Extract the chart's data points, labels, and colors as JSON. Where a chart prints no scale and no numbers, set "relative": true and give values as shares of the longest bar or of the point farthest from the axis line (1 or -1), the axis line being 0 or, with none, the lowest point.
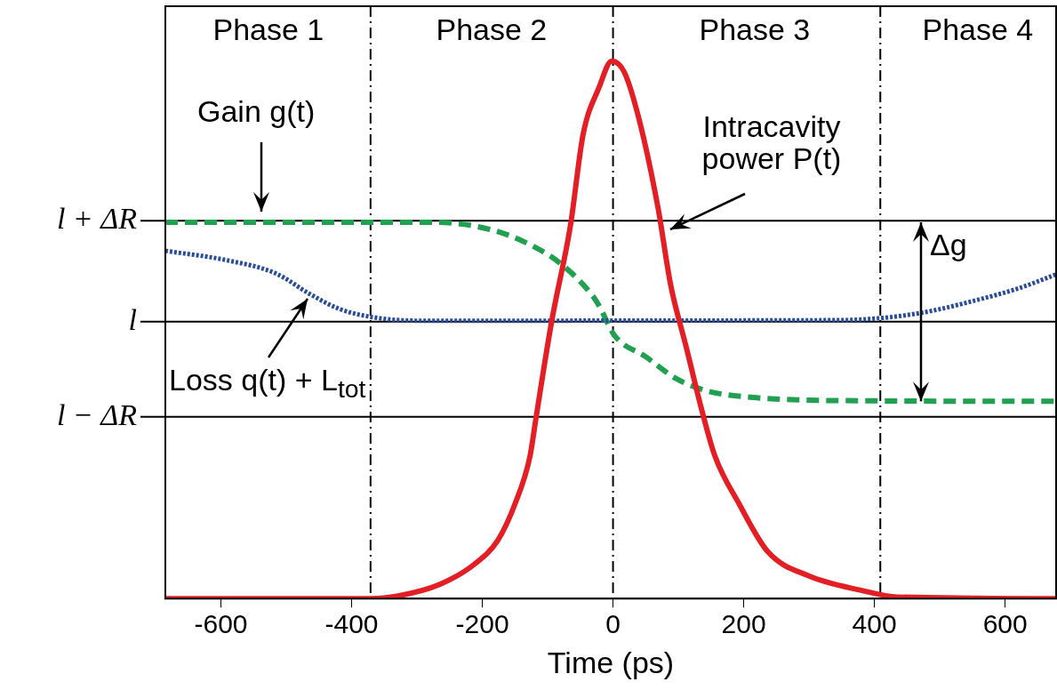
{
  "chart_data": {
    "type": "line",
    "relative": true,
    "xlabel": "Time (ps)",
    "xlim": [
      -685,
      678
    ],
    "xticks": [
      -600,
      -400,
      -200,
      0,
      200,
      400,
      600
    ],
    "grid": false,
    "series": [
      {
        "color": "#20a050",
        "line_style": "dashed",
        "x": [
          -685,
          -274,
          -186,
          -128,
          -80,
          -31,
          -21,
          2,
          50,
          97,
          145,
          216,
          378,
          678
        ],
        "values": [
          0.7,
          0.7,
          0.686,
          0.659,
          0.623,
          0.563,
          0.544,
          0.49,
          0.45,
          0.409,
          0.386,
          0.374,
          0.368,
          0.367
        ]
      },
      {
        "color": "#2a4d9a",
        "line_style": "dotted",
        "x": [
          -685,
          -589,
          -516,
          -463,
          -419,
          -370,
          -299,
          345,
          411,
          478,
          549,
          620,
          678
        ],
        "values": [
          0.647,
          0.629,
          0.605,
          0.566,
          0.539,
          0.524,
          0.517,
          0.518,
          0.522,
          0.533,
          0.553,
          0.577,
          0.603
        ]
      },
      {
        "color": "#e31e24",
        "line_style": "solid",
        "x": [
          -685,
          -371,
          -329,
          -266,
          -212,
          -176,
          -150,
          -127,
          -118,
          -94,
          -65,
          -46,
          -21,
          -2,
          17,
          40,
          69,
          88,
          112,
          136,
          156,
          193,
          237,
          300,
          381,
          435,
          678
        ],
        "values": [
          0,
          0,
          0.005,
          0.026,
          0.064,
          0.109,
          0.176,
          0.265,
          0.335,
          0.515,
          0.695,
          0.862,
          0.952,
          1,
          0.98,
          0.891,
          0.726,
          0.585,
          0.468,
          0.35,
          0.265,
          0.176,
          0.087,
          0.042,
          0.015,
          0.003,
          0
        ]
      }
    ],
    "ref_lines": [
      {
        "axis": "y",
        "value": 0.703,
        "label": "l + ΔR"
      },
      {
        "axis": "y",
        "value": 0.515,
        "label": "l"
      },
      {
        "axis": "y",
        "value": 0.338,
        "label": "l − ΔR"
      },
      {
        "axis": "x",
        "value": -371,
        "label": null,
        "line_style": "dashed"
      },
      {
        "axis": "x",
        "value": 0,
        "label": null,
        "line_style": "dashed"
      },
      {
        "axis": "x",
        "value": 409,
        "label": null,
        "line_style": "dashed"
      }
    ],
    "annotations": [
      "Phase 1",
      "Phase 2",
      "Phase 3",
      "Phase 4",
      "Gain g(t)",
      "Intracavity power P(t)",
      "Loss q(t) + L$_{tot}$",
      "Δg"
    ]
  }
}
